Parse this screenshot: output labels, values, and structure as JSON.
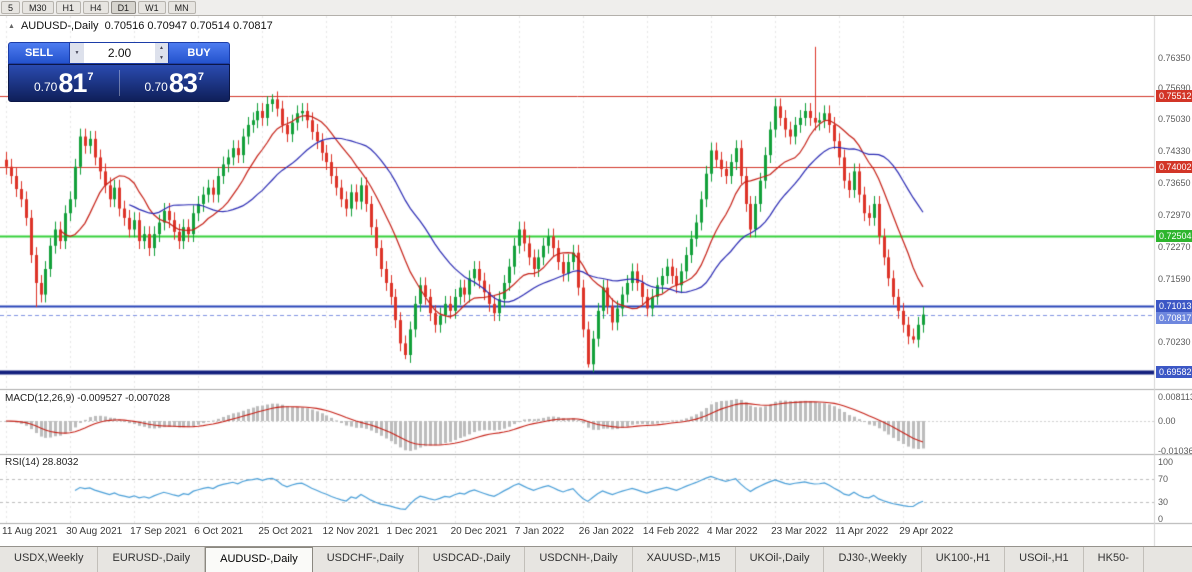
{
  "toolbar": {
    "timeframes": [
      "5",
      "M30",
      "H1",
      "H4",
      "D1",
      "W1",
      "MN"
    ],
    "active": "D1"
  },
  "chart": {
    "collapse_icon": "▲",
    "title_symbol": "AUDUSD-,Daily",
    "ohlc": "0.70516 0.70947 0.70514 0.70817"
  },
  "trade_panel": {
    "sell_label": "SELL",
    "buy_label": "BUY",
    "lot_size": "2.00",
    "dropdown_icon": "▼",
    "spin_up_icon": "▲",
    "spin_down_icon": "▼",
    "sell_price_prefix": "0.70",
    "sell_price_big": "81",
    "sell_price_sup": "7",
    "buy_price_prefix": "0.70",
    "buy_price_big": "83",
    "buy_price_sup": "7"
  },
  "price_axis": {
    "labels": [
      "0.76350",
      "0.75690",
      "0.75030",
      "0.74330",
      "0.73650",
      "0.72970",
      "0.72270",
      "0.71590",
      "0.70230"
    ],
    "tags": [
      {
        "text": "0.75512",
        "bg": "#d23527"
      },
      {
        "text": "0.74002",
        "bg": "#d23527"
      },
      {
        "text": "0.72504",
        "bg": "#2eb52e"
      },
      {
        "text": "0.71013",
        "bg": "#3c57c5"
      },
      {
        "text": "0.70817",
        "bg": "#6e87de"
      },
      {
        "text": "0.69582",
        "bg": "#3c57c5"
      }
    ]
  },
  "macd": {
    "label": "MACD(12,26,9) -0.009527 -0.007028",
    "axis": [
      "0.008113",
      "0.00",
      "-0.01036"
    ]
  },
  "rsi": {
    "label": "RSI(14) 28.8032",
    "axis": [
      "100",
      "70",
      "30",
      "0"
    ]
  },
  "dates": [
    "11 Aug 2021",
    "30 Aug 2021",
    "17 Sep 2021",
    "6 Oct 2021",
    "25 Oct 2021",
    "12 Nov 2021",
    "1 Dec 2021",
    "20 Dec 2021",
    "7 Jan 2022",
    "26 Jan 2022",
    "14 Feb 2022",
    "4 Mar 2022",
    "23 Mar 2022",
    "11 Apr 2022",
    "29 Apr 2022"
  ],
  "tabbar": {
    "active_index": 2,
    "tabs": [
      "USDX,Weekly",
      "EURUSD-,Daily",
      "AUDUSD-,Daily",
      "USDCHF-,Daily",
      "USDCAD-,Daily",
      "USDCNH-,Daily",
      "XAUUSD-,M15",
      "UKOil-,Daily",
      "DJ30-,Weekly",
      "UK100-,H1",
      "USOil-,H1",
      "HK50-"
    ]
  },
  "colors": {
    "candle_up": "#12a03a",
    "candle_down": "#dd3328",
    "ma_fast": "#c62117",
    "ma_slow": "#2b2bb4",
    "macd_hist": "#bcbcbc",
    "macd_signal": "#c62117",
    "rsi_line": "#4a9fd8",
    "grid": "#e7e7e7"
  },
  "chart_data": {
    "type": "candlestick",
    "symbol": "AUDUSD-",
    "timeframe": "Daily",
    "current_price": 0.70817,
    "price_range": [
      0.6924,
      0.772
    ],
    "x_tick_step": 13,
    "closes": [
      0.74,
      0.738,
      0.7352,
      0.733,
      0.729,
      0.721,
      0.715,
      0.7125,
      0.718,
      0.723,
      0.7265,
      0.724,
      0.73,
      0.733,
      0.74,
      0.7465,
      0.7445,
      0.746,
      0.742,
      0.739,
      0.736,
      0.733,
      0.7355,
      0.731,
      0.729,
      0.7265,
      0.7285,
      0.724,
      0.7255,
      0.7225,
      0.7255,
      0.728,
      0.7305,
      0.7285,
      0.726,
      0.724,
      0.727,
      0.7255,
      0.73,
      0.732,
      0.734,
      0.7355,
      0.734,
      0.738,
      0.7405,
      0.742,
      0.744,
      0.7425,
      0.7465,
      0.749,
      0.75,
      0.752,
      0.7505,
      0.7535,
      0.7545,
      0.7525,
      0.749,
      0.747,
      0.7495,
      0.7515,
      0.752,
      0.75,
      0.7475,
      0.7455,
      0.743,
      0.741,
      0.738,
      0.7355,
      0.733,
      0.731,
      0.7345,
      0.7325,
      0.736,
      0.732,
      0.727,
      0.7225,
      0.718,
      0.715,
      0.712,
      0.707,
      0.702,
      0.6995,
      0.705,
      0.7105,
      0.7145,
      0.712,
      0.7085,
      0.706,
      0.708,
      0.7105,
      0.709,
      0.712,
      0.714,
      0.7125,
      0.716,
      0.718,
      0.7155,
      0.713,
      0.7105,
      0.7085,
      0.7115,
      0.715,
      0.7185,
      0.723,
      0.7265,
      0.7235,
      0.7205,
      0.718,
      0.7205,
      0.723,
      0.725,
      0.7225,
      0.7195,
      0.717,
      0.7195,
      0.7215,
      0.714,
      0.705,
      0.6975,
      0.703,
      0.709,
      0.714,
      0.71,
      0.7065,
      0.7095,
      0.7125,
      0.715,
      0.7175,
      0.715,
      0.712,
      0.7095,
      0.712,
      0.7145,
      0.7165,
      0.7185,
      0.7165,
      0.7145,
      0.7175,
      0.721,
      0.7245,
      0.728,
      0.733,
      0.7385,
      0.7435,
      0.7415,
      0.7395,
      0.738,
      0.741,
      0.744,
      0.738,
      0.732,
      0.7265,
      0.732,
      0.737,
      0.7425,
      0.748,
      0.753,
      0.7505,
      0.748,
      0.7465,
      0.749,
      0.7505,
      0.752,
      0.7505,
      0.7495,
      0.75,
      0.7515,
      0.749,
      0.7455,
      0.742,
      0.737,
      0.735,
      0.739,
      0.734,
      0.73,
      0.729,
      0.732,
      0.725,
      0.7205,
      0.716,
      0.712,
      0.709,
      0.706,
      0.7035,
      0.7028,
      0.706,
      0.7082
    ],
    "wick_overrides": {
      "6": {
        "low": 0.7098
      },
      "54": {
        "high": 0.7556
      },
      "81": {
        "low": 0.6986
      },
      "118": {
        "low": 0.6968
      },
      "164": {
        "high": 0.7658
      },
      "184": {
        "low": 0.702
      }
    },
    "hlines": [
      {
        "price": 0.75512,
        "color": "#d23527",
        "width": 1
      },
      {
        "price": 0.74002,
        "color": "#d23527",
        "width": 1
      },
      {
        "price": 0.72504,
        "color": "#35d13a",
        "width": 2
      },
      {
        "price": 0.71013,
        "color": "#2743b8",
        "width": 2
      },
      {
        "price": 0.69582,
        "color": "#14207e",
        "width": 4
      }
    ],
    "ma_periods": {
      "fast": 12,
      "slow": 26
    },
    "indicators": {
      "macd": {
        "fast": 12,
        "slow": 26,
        "signal": 9,
        "value": "-0.009527",
        "signal_value": "-0.007028"
      },
      "rsi": {
        "period": 14,
        "value": "28.8032"
      }
    }
  }
}
